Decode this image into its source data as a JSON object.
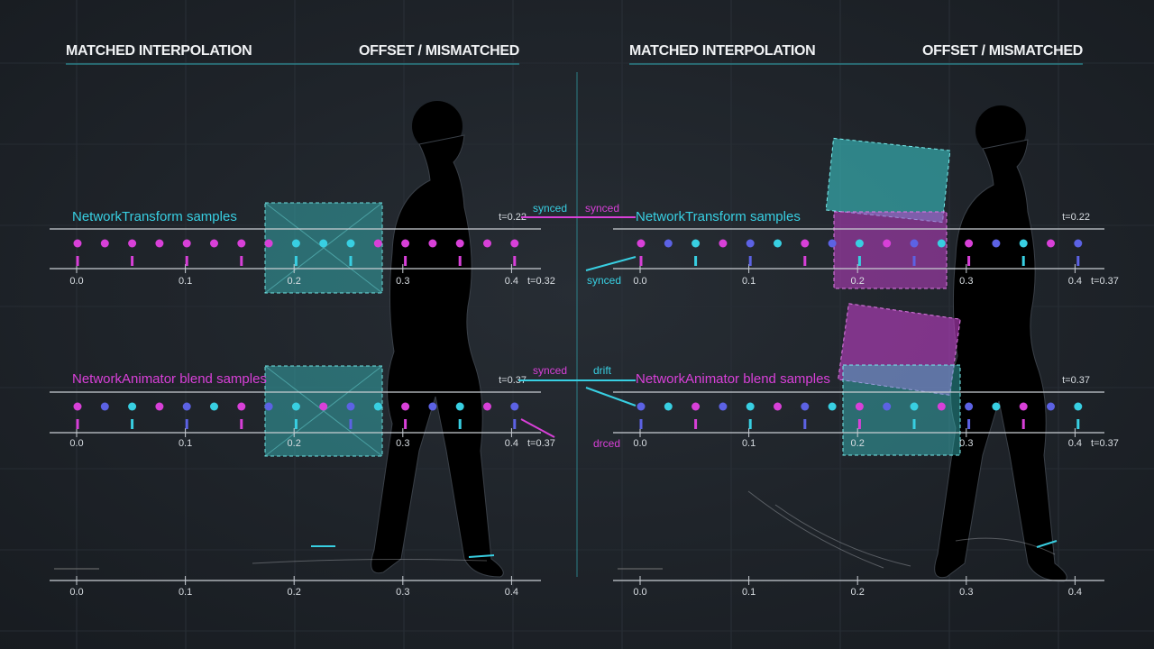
{
  "panels": [
    {
      "header_left": "MATCHED INTERPOLATION",
      "header_right": "OFFSET / MISMATCHED",
      "tracks": [
        {
          "label": "NetworkTransform samples",
          "time_top": "t=0.22",
          "time_bottom": "t=0.32"
        },
        {
          "label": "NetworkAnimator blend samples",
          "time_top": "t=0.37",
          "time_bottom": "t=0.37"
        }
      ],
      "axis_ticks": [
        "0.0",
        "0.1",
        "0.2",
        "0.3",
        "0.4"
      ]
    },
    {
      "header_left": "MATCHED INTERPOLATION",
      "header_right": "OFFSET / MISMATCHED",
      "tracks": [
        {
          "label": "NetworkTransform samples",
          "time_top": "t=0.22",
          "time_bottom": "t=0.37"
        },
        {
          "label": "NetworkAnimator blend samples",
          "time_top": "t=0.37",
          "time_bottom": "t=0.37"
        }
      ],
      "axis_ticks": [
        "0.0",
        "0.1",
        "0.2",
        "0.3",
        "0.4"
      ]
    }
  ],
  "connectors": [
    "synced",
    "synced",
    "synced",
    "synced",
    "drift",
    "drced"
  ]
}
